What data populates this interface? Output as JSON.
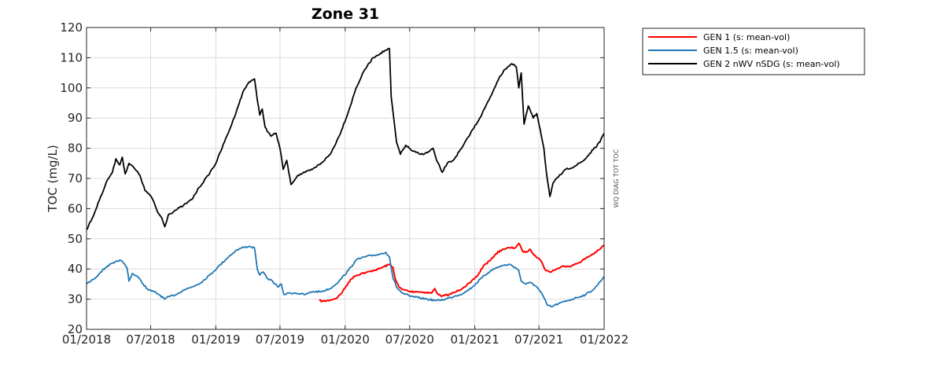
{
  "chart_data": {
    "type": "line",
    "title": "Zone 31",
    "ylabel": "TOC (mg/L)",
    "xlabel": "",
    "side_note": "WQ DIAG TOT TOC",
    "xlim": [
      "2018-01-01",
      "2022-01-01"
    ],
    "ylim": [
      20,
      120
    ],
    "yticks": [
      20,
      30,
      40,
      50,
      60,
      70,
      80,
      90,
      100,
      110,
      120
    ],
    "xticks": [
      {
        "date": "2018-01-01",
        "label": "01/2018"
      },
      {
        "date": "2018-07-01",
        "label": "07/2018"
      },
      {
        "date": "2019-01-01",
        "label": "01/2019"
      },
      {
        "date": "2019-07-01",
        "label": "07/2019"
      },
      {
        "date": "2020-01-01",
        "label": "01/2020"
      },
      {
        "date": "2020-07-01",
        "label": "07/2020"
      },
      {
        "date": "2021-01-01",
        "label": "01/2021"
      },
      {
        "date": "2021-07-01",
        "label": "07/2021"
      },
      {
        "date": "2022-01-01",
        "label": "01/2022"
      }
    ],
    "grid": true,
    "legend_position": "outside-top-right",
    "series": [
      {
        "name": "GEN 1 (s: mean-vol)",
        "color": "#ff0000",
        "points": [
          [
            "2019-10-20",
            29.5
          ],
          [
            "2019-11-01",
            29.3
          ],
          [
            "2019-11-20",
            29.7
          ],
          [
            "2019-12-10",
            30.5
          ],
          [
            "2019-12-25",
            32.5
          ],
          [
            "2020-01-10",
            35.5
          ],
          [
            "2020-01-25",
            37.5
          ],
          [
            "2020-02-15",
            38.5
          ],
          [
            "2020-03-01",
            38.8
          ],
          [
            "2020-03-20",
            39.5
          ],
          [
            "2020-04-05",
            40.0
          ],
          [
            "2020-04-20",
            40.8
          ],
          [
            "2020-05-05",
            41.5
          ],
          [
            "2020-05-15",
            40.5
          ],
          [
            "2020-05-22",
            36.5
          ],
          [
            "2020-06-01",
            34.0
          ],
          [
            "2020-06-10",
            33.2
          ],
          [
            "2020-06-20",
            33.0
          ],
          [
            "2020-07-01",
            32.5
          ],
          [
            "2020-07-20",
            32.5
          ],
          [
            "2020-08-10",
            32.3
          ],
          [
            "2020-09-01",
            32.0
          ],
          [
            "2020-09-10",
            33.5
          ],
          [
            "2020-09-20",
            31.5
          ],
          [
            "2020-10-01",
            31.0
          ],
          [
            "2020-10-20",
            31.5
          ],
          [
            "2020-11-10",
            32.5
          ],
          [
            "2020-12-01",
            34.0
          ],
          [
            "2020-12-20",
            35.5
          ],
          [
            "2021-01-10",
            38.0
          ],
          [
            "2021-01-25",
            41.0
          ],
          [
            "2021-02-15",
            43.0
          ],
          [
            "2021-03-01",
            45.0
          ],
          [
            "2021-03-20",
            46.5
          ],
          [
            "2021-04-10",
            47.0
          ],
          [
            "2021-04-25",
            47.0
          ],
          [
            "2021-05-05",
            48.5
          ],
          [
            "2021-05-15",
            46.0
          ],
          [
            "2021-05-25",
            45.5
          ],
          [
            "2021-06-05",
            46.5
          ],
          [
            "2021-06-20",
            44.5
          ],
          [
            "2021-07-01",
            43.5
          ],
          [
            "2021-07-10",
            42.0
          ],
          [
            "2021-07-20",
            39.5
          ],
          [
            "2021-08-01",
            39.0
          ],
          [
            "2021-08-20",
            40.0
          ],
          [
            "2021-09-10",
            41.0
          ],
          [
            "2021-10-01",
            41.0
          ],
          [
            "2021-10-20",
            42.0
          ],
          [
            "2021-11-10",
            43.5
          ],
          [
            "2021-12-01",
            45.0
          ],
          [
            "2021-12-20",
            46.5
          ],
          [
            "2022-01-01",
            48.0
          ]
        ]
      },
      {
        "name": "GEN 1.5 (s: mean-vol)",
        "color": "#1f77b4",
        "points": [
          [
            "2018-01-01",
            35.0
          ],
          [
            "2018-01-20",
            36.5
          ],
          [
            "2018-02-10",
            39.0
          ],
          [
            "2018-03-01",
            41.0
          ],
          [
            "2018-03-20",
            42.0
          ],
          [
            "2018-04-05",
            43.0
          ],
          [
            "2018-04-15",
            42.0
          ],
          [
            "2018-04-25",
            40.5
          ],
          [
            "2018-05-01",
            36.0
          ],
          [
            "2018-05-10",
            38.5
          ],
          [
            "2018-05-25",
            37.5
          ],
          [
            "2018-06-10",
            35.0
          ],
          [
            "2018-06-25",
            33.0
          ],
          [
            "2018-07-10",
            32.5
          ],
          [
            "2018-07-25",
            31.5
          ],
          [
            "2018-08-10",
            30.0
          ],
          [
            "2018-08-25",
            31.0
          ],
          [
            "2018-09-10",
            31.5
          ],
          [
            "2018-10-01",
            33.0
          ],
          [
            "2018-10-25",
            34.0
          ],
          [
            "2018-11-20",
            35.5
          ],
          [
            "2018-12-15",
            38.0
          ],
          [
            "2019-01-10",
            41.0
          ],
          [
            "2019-02-01",
            43.5
          ],
          [
            "2019-02-25",
            46.0
          ],
          [
            "2019-03-15",
            47.0
          ],
          [
            "2019-04-05",
            47.5
          ],
          [
            "2019-04-20",
            47.0
          ],
          [
            "2019-04-28",
            40.0
          ],
          [
            "2019-05-05",
            38.0
          ],
          [
            "2019-05-15",
            39.0
          ],
          [
            "2019-05-25",
            37.0
          ],
          [
            "2019-06-10",
            36.0
          ],
          [
            "2019-06-25",
            34.0
          ],
          [
            "2019-07-05",
            35.0
          ],
          [
            "2019-07-12",
            31.5
          ],
          [
            "2019-07-25",
            32.0
          ],
          [
            "2019-08-15",
            32.0
          ],
          [
            "2019-09-10",
            31.5
          ],
          [
            "2019-10-01",
            32.5
          ],
          [
            "2019-10-25",
            32.5
          ],
          [
            "2019-11-20",
            33.5
          ],
          [
            "2019-12-15",
            36.0
          ],
          [
            "2020-01-10",
            39.5
          ],
          [
            "2020-02-01",
            43.0
          ],
          [
            "2020-02-25",
            44.0
          ],
          [
            "2020-03-20",
            44.5
          ],
          [
            "2020-04-10",
            45.0
          ],
          [
            "2020-04-25",
            45.5
          ],
          [
            "2020-05-05",
            44.0
          ],
          [
            "2020-05-15",
            37.0
          ],
          [
            "2020-05-25",
            34.0
          ],
          [
            "2020-06-10",
            32.0
          ],
          [
            "2020-07-01",
            31.0
          ],
          [
            "2020-07-25",
            30.5
          ],
          [
            "2020-08-20",
            30.0
          ],
          [
            "2020-09-15",
            29.5
          ],
          [
            "2020-10-10",
            30.0
          ],
          [
            "2020-11-05",
            31.0
          ],
          [
            "2020-12-01",
            32.0
          ],
          [
            "2020-12-25",
            34.0
          ],
          [
            "2021-01-20",
            37.0
          ],
          [
            "2021-02-15",
            39.5
          ],
          [
            "2021-03-15",
            41.0
          ],
          [
            "2021-04-10",
            41.5
          ],
          [
            "2021-04-25",
            40.5
          ],
          [
            "2021-05-05",
            39.5
          ],
          [
            "2021-05-12",
            36.0
          ],
          [
            "2021-05-25",
            35.0
          ],
          [
            "2021-06-10",
            35.5
          ],
          [
            "2021-06-25",
            34.0
          ],
          [
            "2021-07-05",
            32.5
          ],
          [
            "2021-07-15",
            30.5
          ],
          [
            "2021-07-25",
            28.0
          ],
          [
            "2021-08-05",
            27.5
          ],
          [
            "2021-08-25",
            28.5
          ],
          [
            "2021-09-20",
            29.5
          ],
          [
            "2021-10-15",
            30.5
          ],
          [
            "2021-11-10",
            31.5
          ],
          [
            "2021-12-05",
            33.5
          ],
          [
            "2022-01-01",
            37.5
          ]
        ]
      },
      {
        "name": "GEN 2 nWV nSDG (s: mean-vol)",
        "color": "#000000",
        "points": [
          [
            "2018-01-01",
            53.0
          ],
          [
            "2018-01-20",
            57.5
          ],
          [
            "2018-02-10",
            64.0
          ],
          [
            "2018-03-01",
            69.5
          ],
          [
            "2018-03-15",
            72.0
          ],
          [
            "2018-03-25",
            76.5
          ],
          [
            "2018-04-05",
            74.5
          ],
          [
            "2018-04-12",
            77.0
          ],
          [
            "2018-04-20",
            71.5
          ],
          [
            "2018-05-01",
            75.0
          ],
          [
            "2018-05-15",
            73.5
          ],
          [
            "2018-06-01",
            71.0
          ],
          [
            "2018-06-15",
            66.0
          ],
          [
            "2018-06-25",
            65.0
          ],
          [
            "2018-07-05",
            63.5
          ],
          [
            "2018-07-20",
            59.0
          ],
          [
            "2018-08-01",
            57.0
          ],
          [
            "2018-08-10",
            54.0
          ],
          [
            "2018-08-20",
            58.0
          ],
          [
            "2018-09-10",
            59.5
          ],
          [
            "2018-10-01",
            61.0
          ],
          [
            "2018-10-25",
            63.0
          ],
          [
            "2018-11-15",
            67.0
          ],
          [
            "2018-12-10",
            71.0
          ],
          [
            "2019-01-01",
            75.0
          ],
          [
            "2019-01-25",
            82.0
          ],
          [
            "2019-02-15",
            88.0
          ],
          [
            "2019-03-05",
            94.0
          ],
          [
            "2019-03-20",
            99.0
          ],
          [
            "2019-04-05",
            102.0
          ],
          [
            "2019-04-20",
            103.0
          ],
          [
            "2019-04-28",
            96.0
          ],
          [
            "2019-05-05",
            91.0
          ],
          [
            "2019-05-12",
            93.0
          ],
          [
            "2019-05-20",
            87.0
          ],
          [
            "2019-06-05",
            84.0
          ],
          [
            "2019-06-20",
            85.0
          ],
          [
            "2019-07-01",
            80.0
          ],
          [
            "2019-07-10",
            73.0
          ],
          [
            "2019-07-20",
            76.0
          ],
          [
            "2019-08-01",
            68.0
          ],
          [
            "2019-08-20",
            71.0
          ],
          [
            "2019-09-10",
            72.0
          ],
          [
            "2019-10-01",
            73.0
          ],
          [
            "2019-10-25",
            75.0
          ],
          [
            "2019-11-20",
            78.0
          ],
          [
            "2019-12-15",
            84.0
          ],
          [
            "2020-01-10",
            92.0
          ],
          [
            "2020-02-01",
            100.0
          ],
          [
            "2020-02-25",
            106.0
          ],
          [
            "2020-03-20",
            110.0
          ],
          [
            "2020-04-10",
            111.5
          ],
          [
            "2020-04-25",
            112.5
          ],
          [
            "2020-05-05",
            113.0
          ],
          [
            "2020-05-10",
            97.0
          ],
          [
            "2020-05-15",
            92.0
          ],
          [
            "2020-05-25",
            82.0
          ],
          [
            "2020-06-05",
            78.0
          ],
          [
            "2020-06-20",
            81.0
          ],
          [
            "2020-07-10",
            79.0
          ],
          [
            "2020-08-01",
            78.0
          ],
          [
            "2020-08-20",
            78.5
          ],
          [
            "2020-09-05",
            80.0
          ],
          [
            "2020-09-15",
            76.0
          ],
          [
            "2020-10-01",
            72.0
          ],
          [
            "2020-10-15",
            75.0
          ],
          [
            "2020-11-01",
            76.0
          ],
          [
            "2020-11-25",
            80.0
          ],
          [
            "2020-12-20",
            85.0
          ],
          [
            "2021-01-15",
            90.0
          ],
          [
            "2021-02-10",
            96.0
          ],
          [
            "2021-03-05",
            102.0
          ],
          [
            "2021-03-25",
            106.0
          ],
          [
            "2021-04-15",
            108.0
          ],
          [
            "2021-04-28",
            107.0
          ],
          [
            "2021-05-05",
            100.0
          ],
          [
            "2021-05-12",
            105.0
          ],
          [
            "2021-05-20",
            88.0
          ],
          [
            "2021-06-01",
            94.0
          ],
          [
            "2021-06-15",
            90.0
          ],
          [
            "2021-06-25",
            91.5
          ],
          [
            "2021-07-05",
            86.0
          ],
          [
            "2021-07-15",
            80.0
          ],
          [
            "2021-07-22",
            72.0
          ],
          [
            "2021-08-01",
            64.0
          ],
          [
            "2021-08-10",
            68.5
          ],
          [
            "2021-08-25",
            70.5
          ],
          [
            "2021-09-15",
            73.0
          ],
          [
            "2021-10-10",
            74.0
          ],
          [
            "2021-11-05",
            76.0
          ],
          [
            "2021-12-01",
            79.5
          ],
          [
            "2021-12-20",
            82.0
          ],
          [
            "2022-01-01",
            85.0
          ]
        ]
      }
    ]
  }
}
